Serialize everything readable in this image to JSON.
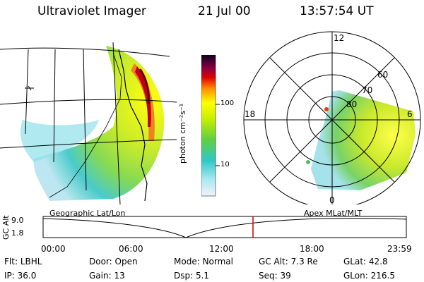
{
  "header": {
    "title": "Ultraviolet Imager",
    "date": "21 Jul 00",
    "time": "13:57:54 UT"
  },
  "colorbar": {
    "label": "photon cm⁻²s⁻¹",
    "ticks": [
      "100",
      "10"
    ]
  },
  "geo": {
    "label": "Geographic Lat/Lon"
  },
  "polar": {
    "label": "Apex MLat/MLT",
    "mlt_labels": [
      "12",
      "18",
      "6",
      "0"
    ],
    "lat_labels": [
      "60",
      "70",
      "80"
    ]
  },
  "gc_alt_plot": {
    "axis_label": "GC Alt",
    "y_ticks": [
      "9.0",
      "1.8"
    ],
    "x_ticks": [
      "00:00",
      "06:00",
      "12:00",
      "18:00",
      "23:59"
    ],
    "current_time_marker": "13:57:54"
  },
  "status": {
    "rows": [
      [
        {
          "label": "Flt:",
          "value": "LBHL"
        },
        {
          "label": "Door:",
          "value": "Open"
        },
        {
          "label": "Mode:",
          "value": "Normal"
        },
        {
          "label": "GC Alt:",
          "value": "7.3 Re"
        },
        {
          "label": "GLat:",
          "value": "42.8"
        }
      ],
      [
        {
          "label": "IP:",
          "value": "36.0"
        },
        {
          "label": "Gain:",
          "value": "13"
        },
        {
          "label": "Dsp:",
          "value": "5.1"
        },
        {
          "label": "Seq:",
          "value": "39"
        },
        {
          "label": "GLon:",
          "value": "216.5"
        }
      ]
    ]
  }
}
